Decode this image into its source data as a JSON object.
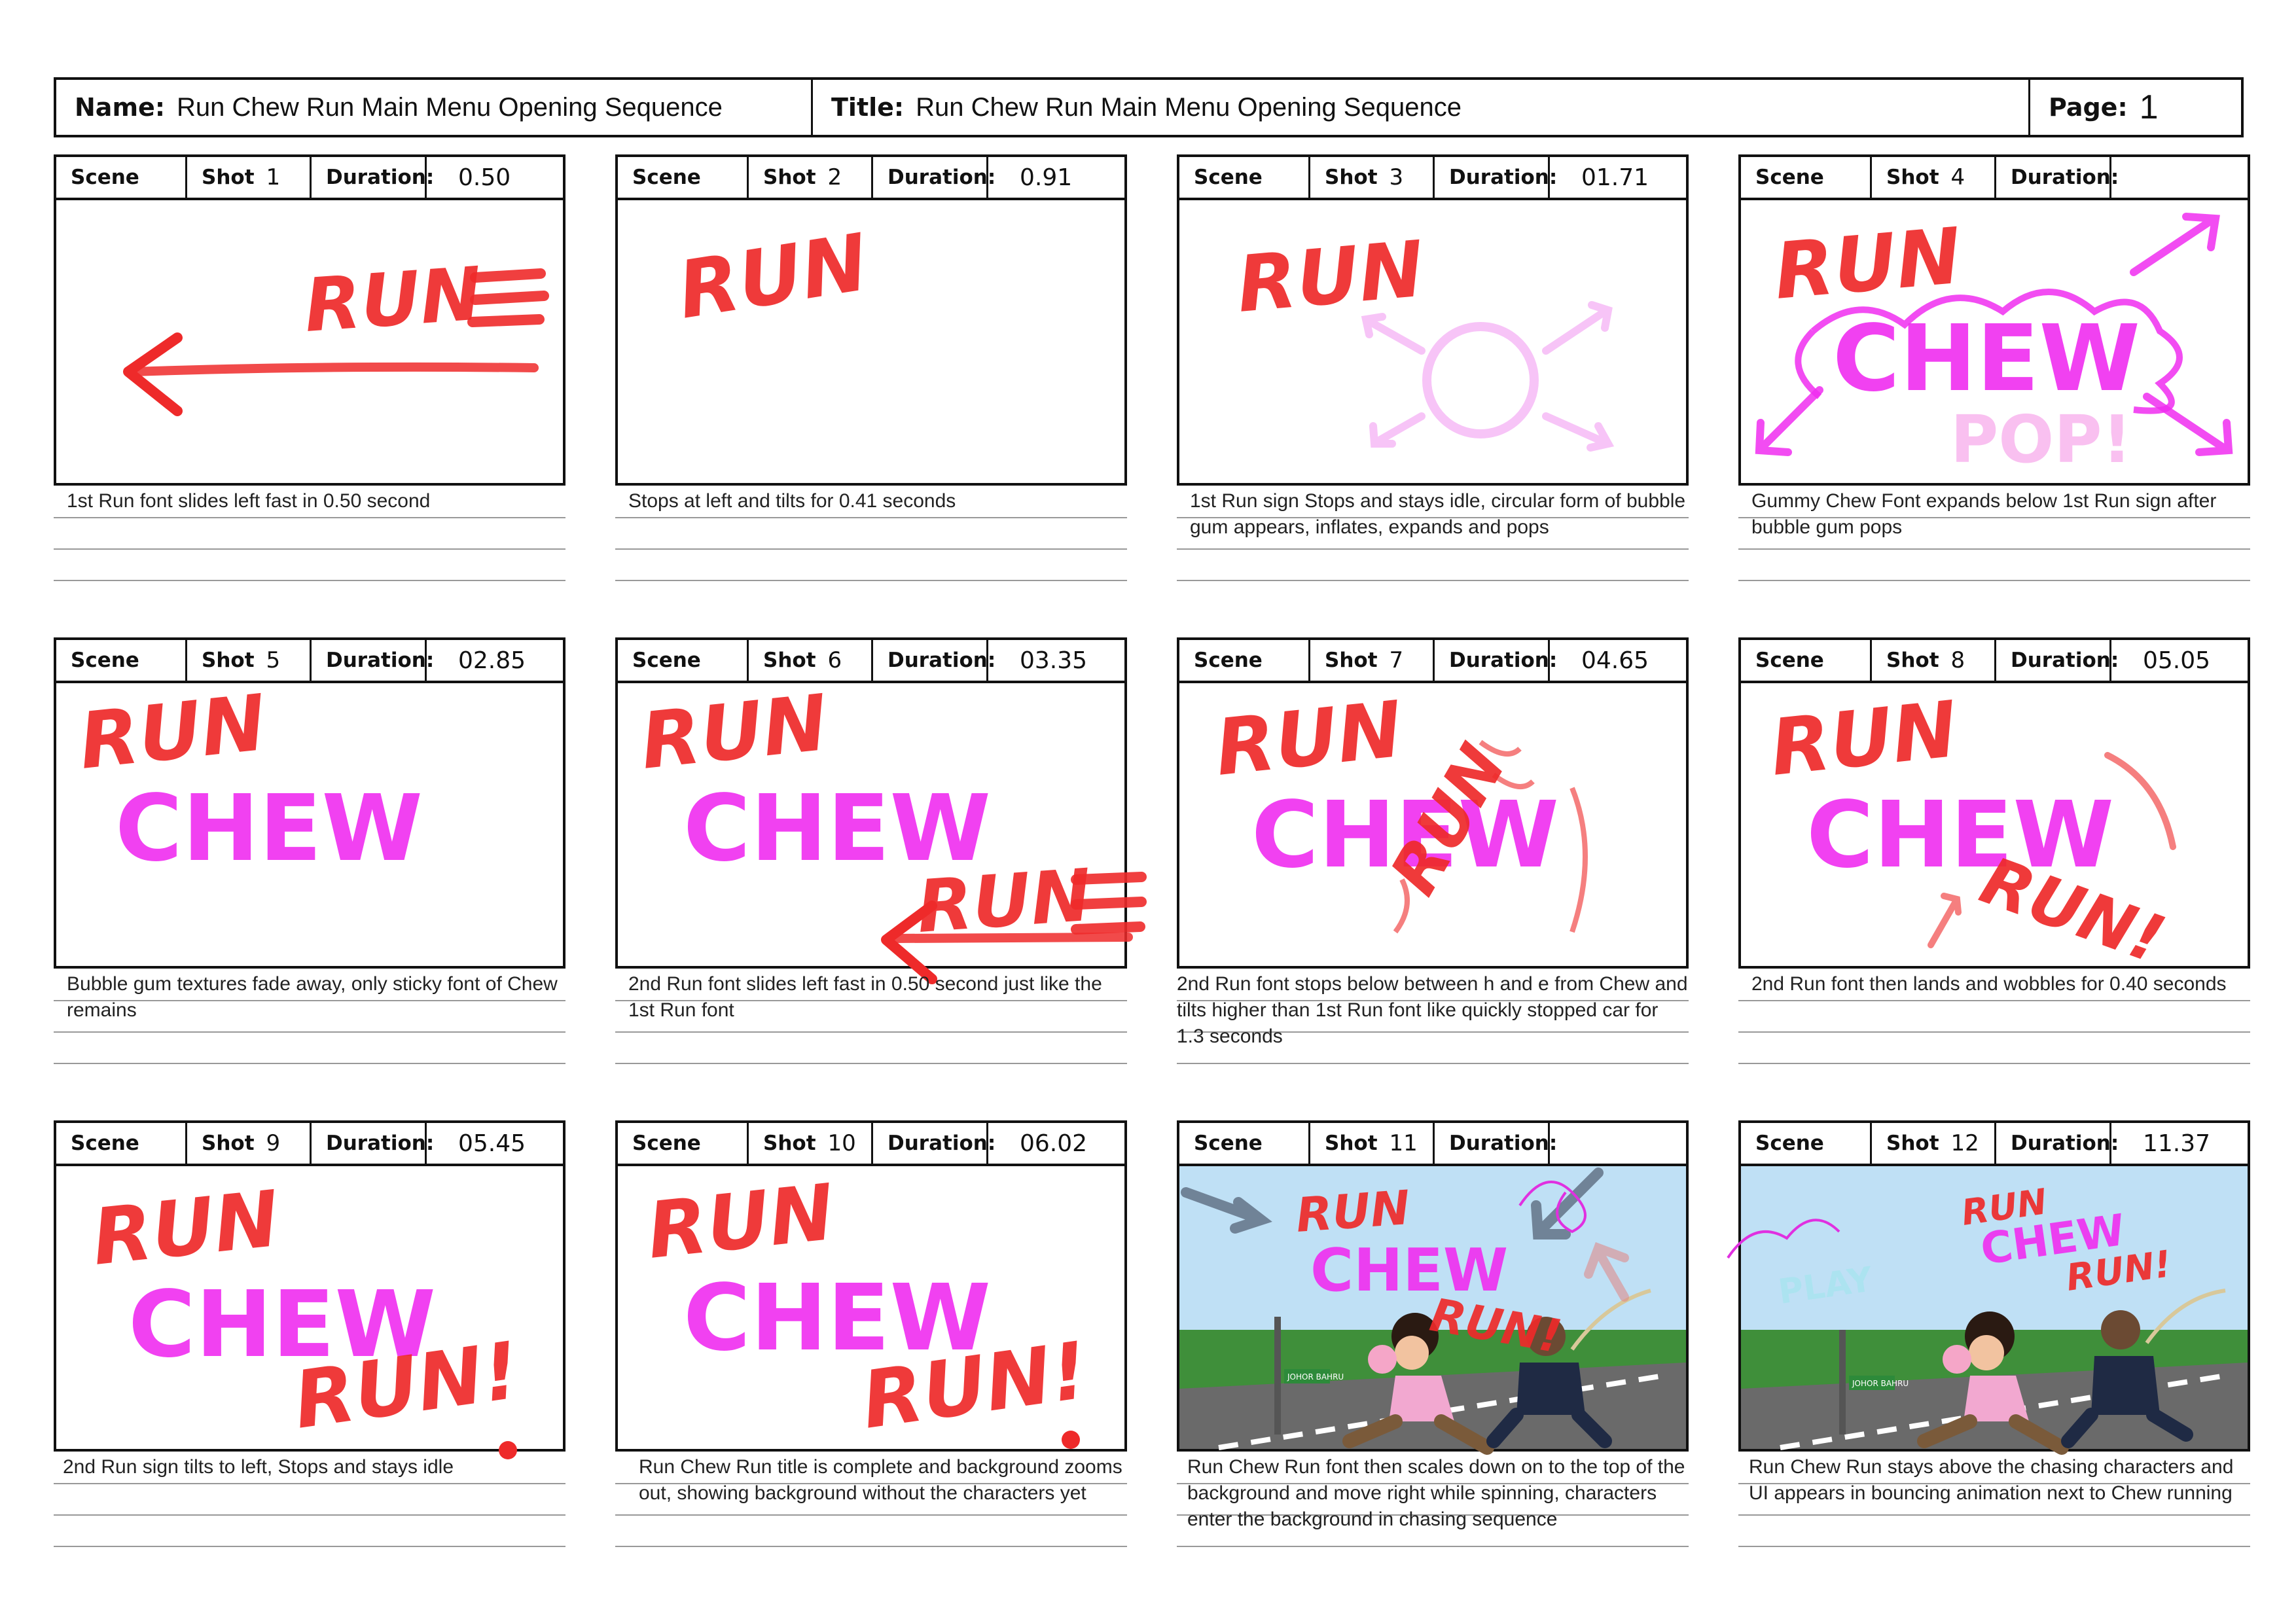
{
  "header": {
    "name_label": "Name:",
    "name_value": "Run Chew Run Main Menu Opening Sequence",
    "title_label": "Title:",
    "title_value": "Run Chew Run Main Menu Opening Sequence",
    "page_label": "Page:",
    "page_value": "1"
  },
  "labels": {
    "scene": "Scene",
    "shot": "Shot",
    "duration": "Duration:"
  },
  "shots": [
    {
      "shot": "1",
      "duration": "0.50",
      "notes": "1st Run font slides left fast in 0.50 second"
    },
    {
      "shot": "2",
      "duration": "0.91",
      "notes": "Stops at left and tilts for 0.41 seconds"
    },
    {
      "shot": "3",
      "duration": "01.71",
      "notes": "1st Run sign Stops and stays idle, circular form of bubble gum appears, inflates, expands and pops"
    },
    {
      "shot": "4",
      "duration": "",
      "notes": "Gummy Chew Font expands below 1st Run sign after bubble gum pops"
    },
    {
      "shot": "5",
      "duration": "02.85",
      "notes": "Bubble gum textures fade away, only sticky font of Chew remains"
    },
    {
      "shot": "6",
      "duration": "03.35",
      "notes": "2nd Run font slides left fast in 0.50 second just like the 1st Run font"
    },
    {
      "shot": "7",
      "duration": "04.65",
      "notes": "2nd Run font stops below between h and e from Chew and tilts higher than 1st Run font like quickly stopped car for 1.3 seconds"
    },
    {
      "shot": "8",
      "duration": "05.05",
      "notes": "2nd Run font then lands and wobbles for 0.40 seconds"
    },
    {
      "shot": "9",
      "duration": "05.45",
      "notes": "2nd Run sign tilts to left, Stops and stays idle"
    },
    {
      "shot": "10",
      "duration": "06.02",
      "notes": "Run Chew Run title is complete and background zooms out, showing background without the characters yet"
    },
    {
      "shot": "11",
      "duration": "",
      "notes": "Run Chew Run font then scales down on to the top of the background and move right while spinning, characters enter the background in chasing sequence"
    },
    {
      "shot": "12",
      "duration": "11.37",
      "notes": "Run Chew Run stays above the chasing characters and UI appears in bouncing animation next to Chew running"
    }
  ],
  "art": {
    "run": "RUN",
    "chew": "CHEW",
    "run_bang": "RUN!",
    "pop": "POP!",
    "play": "PLAY",
    "sign": "JOHOR BAHRU"
  },
  "colors": {
    "run_red": "#ee2a2a",
    "chew_magenta": "#f02df0",
    "sky": "#bfe0f5",
    "frame": "#111111"
  }
}
